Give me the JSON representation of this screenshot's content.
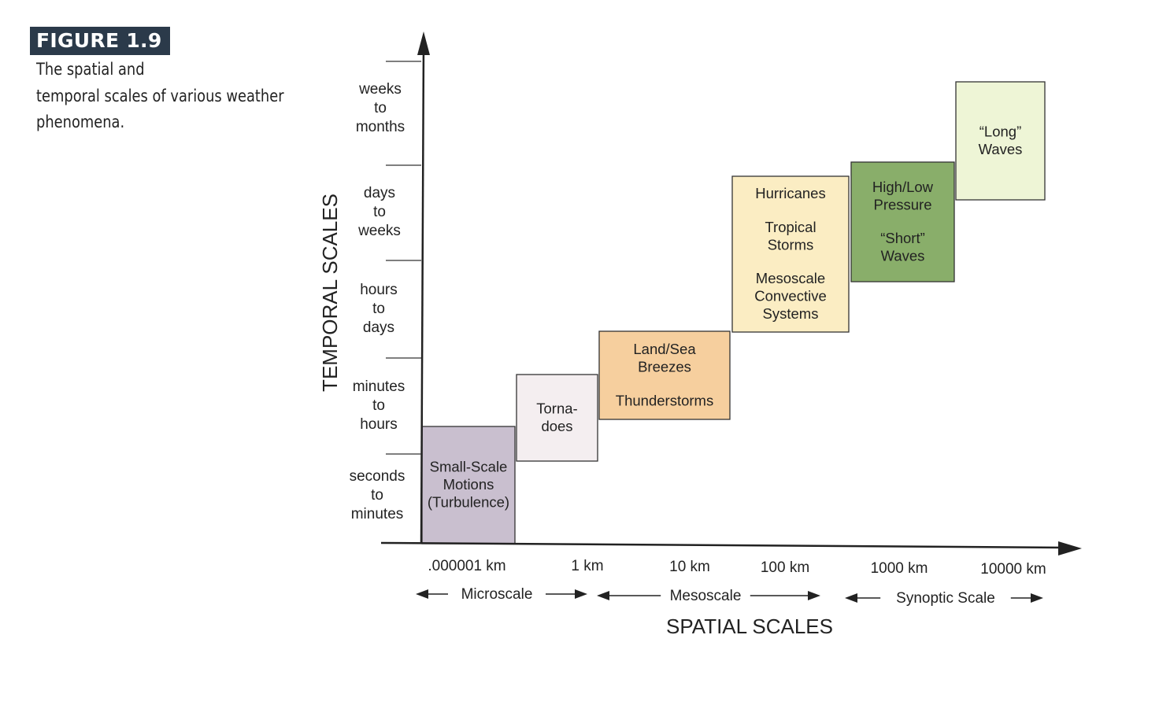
{
  "caption": {
    "figure_label": "FIGURE 1.9",
    "text_line1": "The spatial and",
    "text_line2": "temporal scales of various weather",
    "text_line3": "phenomena."
  },
  "axes": {
    "y_title": "TEMPORAL SCALES",
    "x_title": "SPATIAL SCALES"
  },
  "time_bands": [
    [
      "seconds",
      "to",
      "minutes"
    ],
    [
      "minutes",
      "to",
      "hours"
    ],
    [
      "hours",
      "to",
      "days"
    ],
    [
      "days",
      "to",
      "weeks"
    ],
    [
      "weeks",
      "to",
      "months"
    ]
  ],
  "spatial_ticks": [
    ".000001 km",
    "1 km",
    "10 km",
    "100 km",
    "1000 km",
    "10000 km"
  ],
  "scale_ranges": [
    "Microscale",
    "Mesoscale",
    "Synoptic Scale"
  ],
  "phenomena": [
    {
      "lines": [
        "Small-Scale",
        "Motions",
        "(Turbulence)"
      ],
      "color": "#c9bfcf"
    },
    {
      "lines": [
        "Torna-",
        "does"
      ],
      "color": "#f4eef0"
    },
    {
      "lines": [
        "Land/Sea",
        "Breezes",
        "",
        "Thunderstorms"
      ],
      "color": "#f6cf9e"
    },
    {
      "lines": [
        "Hurricanes",
        "",
        "Tropical",
        "Storms",
        "",
        "Mesoscale",
        "Convective",
        "Systems"
      ],
      "color": "#fbedc3"
    },
    {
      "lines": [
        "High/Low",
        "Pressure",
        "",
        "“Short”",
        "Waves"
      ],
      "color": "#89ae6a"
    },
    {
      "lines": [
        "“Long”",
        "Waves"
      ],
      "color": "#eef5d6"
    }
  ]
}
